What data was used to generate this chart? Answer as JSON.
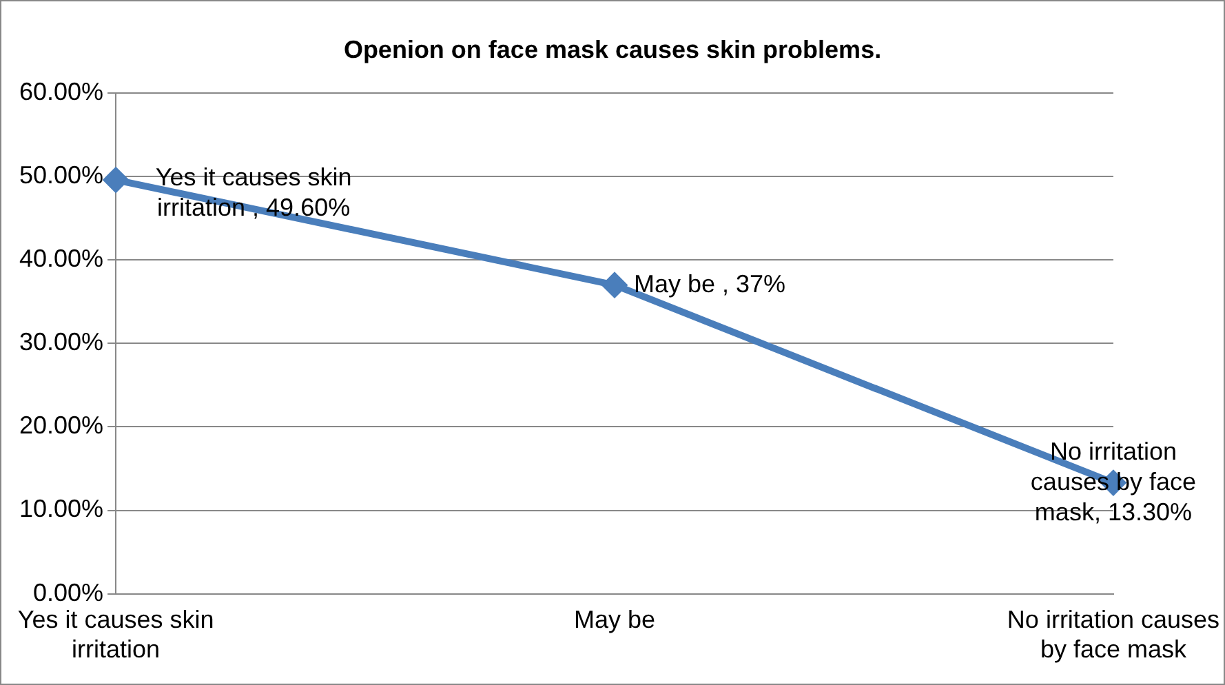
{
  "chart_data": {
    "type": "line",
    "title": "Openion on face mask causes skin problems.",
    "categories": [
      "Yes it causes skin irritation",
      "May be",
      "No irritation causes by face mask"
    ],
    "series": [
      {
        "color": "#4a7ebb",
        "values": [
          49.6,
          37,
          13.3
        ],
        "value_labels": [
          "Yes it causes skin irritation , 49.60%",
          "May be , 37%",
          "No irritation causes by face mask, 13.30%"
        ]
      }
    ],
    "ylim": [
      0,
      60
    ],
    "yticks": [
      {
        "value": 0,
        "label": "0.00%"
      },
      {
        "value": 10,
        "label": "10.00%"
      },
      {
        "value": 20,
        "label": "20.00%"
      },
      {
        "value": 30,
        "label": "30.00%"
      },
      {
        "value": 40,
        "label": "40.00%"
      },
      {
        "value": 50,
        "label": "50.00%"
      },
      {
        "value": 60,
        "label": "60.00%"
      }
    ],
    "grid": "y",
    "legend": false,
    "marker": "diamond",
    "line_style": "solid"
  }
}
